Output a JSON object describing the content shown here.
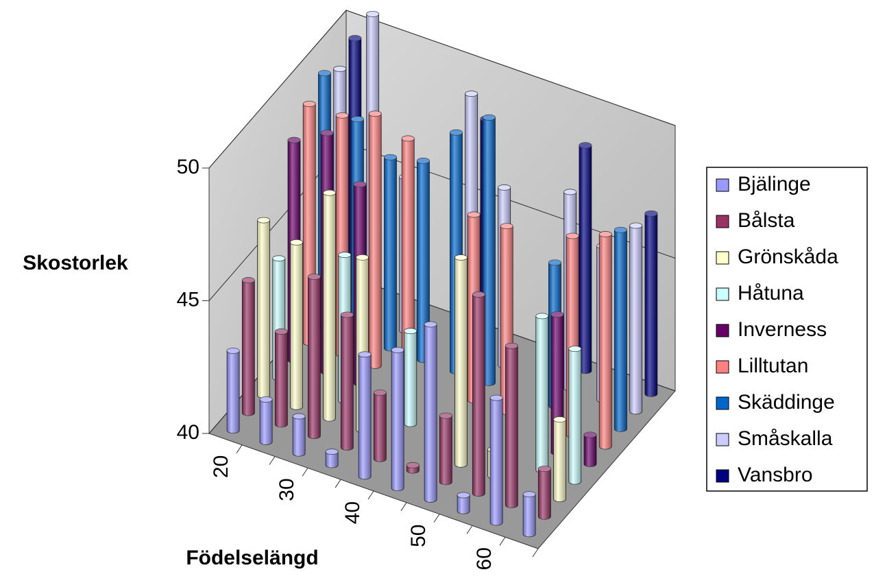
{
  "chart_data": {
    "type": "bar3d",
    "x_label": "Födelselängd",
    "y_label": "Skostorlek",
    "categories": [
      "20",
      null,
      "30",
      null,
      "40",
      null,
      "50",
      null,
      "60",
      null
    ],
    "ylim": [
      40,
      50
    ],
    "yticks": [
      40,
      45,
      50
    ],
    "grid": true,
    "legend": "right",
    "series": [
      {
        "name": "Bjälinge",
        "color": "#9999ff",
        "values": [
          43,
          41.6,
          41.4,
          40.5,
          44.6,
          45.2,
          46.6,
          40.6,
          44.7,
          41.5
        ]
      },
      {
        "name": "Bålsta",
        "color": "#993366",
        "values": [
          45,
          43.5,
          46,
          45,
          42.5,
          40.2,
          42.5,
          47.5,
          46,
          41.8
        ]
      },
      {
        "name": "Grönskåda",
        "color": "#ffffcc",
        "values": [
          46.6,
          46.2,
          48.5,
          46.5,
          null,
          null,
          47.8,
          41,
          null,
          43
        ]
      },
      {
        "name": "Håtuna",
        "color": "#ccffff",
        "values": [
          44.5,
          null,
          45.5,
          null,
          43.5,
          null,
          null,
          null,
          45.8,
          45
        ]
      },
      {
        "name": "Inverness",
        "color": "#660066",
        "values": [
          48.3,
          49,
          47.5,
          null,
          null,
          null,
          null,
          null,
          45.2,
          41.1
        ]
      },
      {
        "name": "Lilltutan",
        "color": "#ff8080",
        "values": [
          49,
          49,
          49.5,
          49,
          null,
          47,
          47,
          null,
          47.5,
          48
        ]
      },
      {
        "name": "Skäddinge",
        "color": "#0066cc",
        "values": [
          49.5,
          48.2,
          47.2,
          47.5,
          49,
          50,
          null,
          45.4,
          null,
          47.5
        ]
      },
      {
        "name": "Småskalla",
        "color": "#ccccff",
        "values": [
          49,
          51.5,
          45.8,
          null,
          49.8,
          46.7,
          null,
          47.4,
          45.8,
          47
        ]
      },
      {
        "name": "Vansbro",
        "color": "#000080",
        "values": [
          49.5,
          null,
          null,
          null,
          48.2,
          null,
          null,
          48.5,
          null,
          46.8
        ]
      }
    ]
  }
}
